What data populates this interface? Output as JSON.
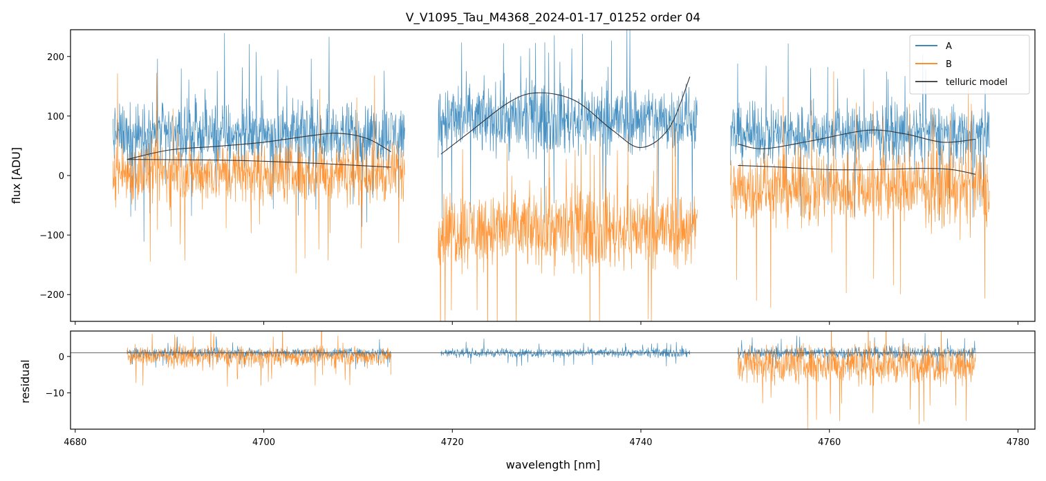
{
  "colors": {
    "A": "#1f77b4",
    "B": "#ff7f0e",
    "telluric": "#333333",
    "frame": "#000000",
    "legend_edge": "#cccccc"
  },
  "chart_data": [
    {
      "type": "line",
      "panel": "flux",
      "title": "V_V1095_Tau_M4368_2024-01-17_01252  order 04",
      "ylabel": "flux [ADU]",
      "xlabel": "",
      "xlim": [
        4679.5,
        4781.8
      ],
      "ylim": [
        -245,
        245
      ],
      "xticks": [
        4680,
        4700,
        4720,
        4740,
        4760,
        4780
      ],
      "xtick_labels_visible": false,
      "yticks": [
        -200,
        -100,
        0,
        100,
        200
      ],
      "ytick_labels": [
        "−200",
        "−100",
        "0",
        "100",
        "200"
      ],
      "legend": {
        "location": "top-right",
        "entries": [
          "A",
          "B",
          "telluric model"
        ]
      },
      "segments": [
        {
          "x_range": [
            4684.0,
            4715.0
          ],
          "A_mean": 70,
          "A_amp": 75,
          "B_mean": 5,
          "B_amp": 75
        },
        {
          "x_range": [
            4718.5,
            4746.0
          ],
          "A_mean": 95,
          "A_amp": 85,
          "B_mean": -90,
          "B_amp": 95
        },
        {
          "x_range": [
            4749.5,
            4777.0
          ],
          "A_mean": 70,
          "A_amp": 70,
          "B_mean": -20,
          "B_amp": 90
        }
      ],
      "series": [
        {
          "name": "telluric model",
          "role": "A-model",
          "segment": 1,
          "x": [
            4685.5,
            4690,
            4695,
            4700,
            4705,
            4708,
            4711,
            4713.5
          ],
          "y": [
            27,
            43,
            49,
            56,
            67,
            71,
            62,
            40
          ]
        },
        {
          "name": "telluric model",
          "role": "B-model",
          "segment": 1,
          "x": [
            4685.5,
            4695,
            4700,
            4705,
            4710,
            4713.5
          ],
          "y": [
            27,
            26,
            24,
            21,
            17,
            14
          ]
        },
        {
          "name": "telluric model",
          "role": "A-model",
          "segment": 2,
          "x": [
            4718.8,
            4722,
            4726,
            4729,
            4733,
            4737,
            4740,
            4743,
            4745.2
          ],
          "y": [
            36,
            75,
            123,
            139,
            126,
            76,
            47,
            80,
            166
          ]
        },
        {
          "name": "telluric model",
          "role": "A-model",
          "segment": 3,
          "x": [
            4750.3,
            4753,
            4758,
            4764,
            4768,
            4772,
            4775.5
          ],
          "y": [
            53,
            45,
            58,
            76,
            70,
            56,
            61
          ]
        },
        {
          "name": "telluric model",
          "role": "B-model",
          "segment": 3,
          "x": [
            4750.3,
            4755,
            4760,
            4765,
            4770,
            4773,
            4775.5
          ],
          "y": [
            17,
            14,
            10,
            10,
            12,
            10,
            2
          ]
        }
      ]
    },
    {
      "type": "line",
      "panel": "residual",
      "title": "",
      "ylabel": "residual",
      "xlabel": "wavelength [nm]",
      "xlim": [
        4679.5,
        4781.8
      ],
      "ylim": [
        -20,
        7
      ],
      "xticks": [
        4680,
        4700,
        4720,
        4740,
        4760,
        4780
      ],
      "xtick_labels": [
        "4680",
        "4700",
        "4720",
        "4740",
        "4760",
        "4780"
      ],
      "yticks": [
        -10,
        0
      ],
      "ytick_labels": [
        "−10",
        "0"
      ],
      "reference_line_y": 1,
      "segments": [
        {
          "x_range": [
            4685.5,
            4713.5
          ],
          "A_mean": 1,
          "A_amp": 2,
          "B_mean": 0,
          "B_amp": 4
        },
        {
          "x_range": [
            4718.8,
            4745.2
          ],
          "A_mean": 1,
          "A_amp": 1.8,
          "B_mean": null,
          "B_amp": null
        },
        {
          "x_range": [
            4750.3,
            4775.5
          ],
          "A_mean": 1,
          "A_amp": 2.5,
          "B_mean": -2,
          "B_amp": 8
        }
      ]
    }
  ]
}
